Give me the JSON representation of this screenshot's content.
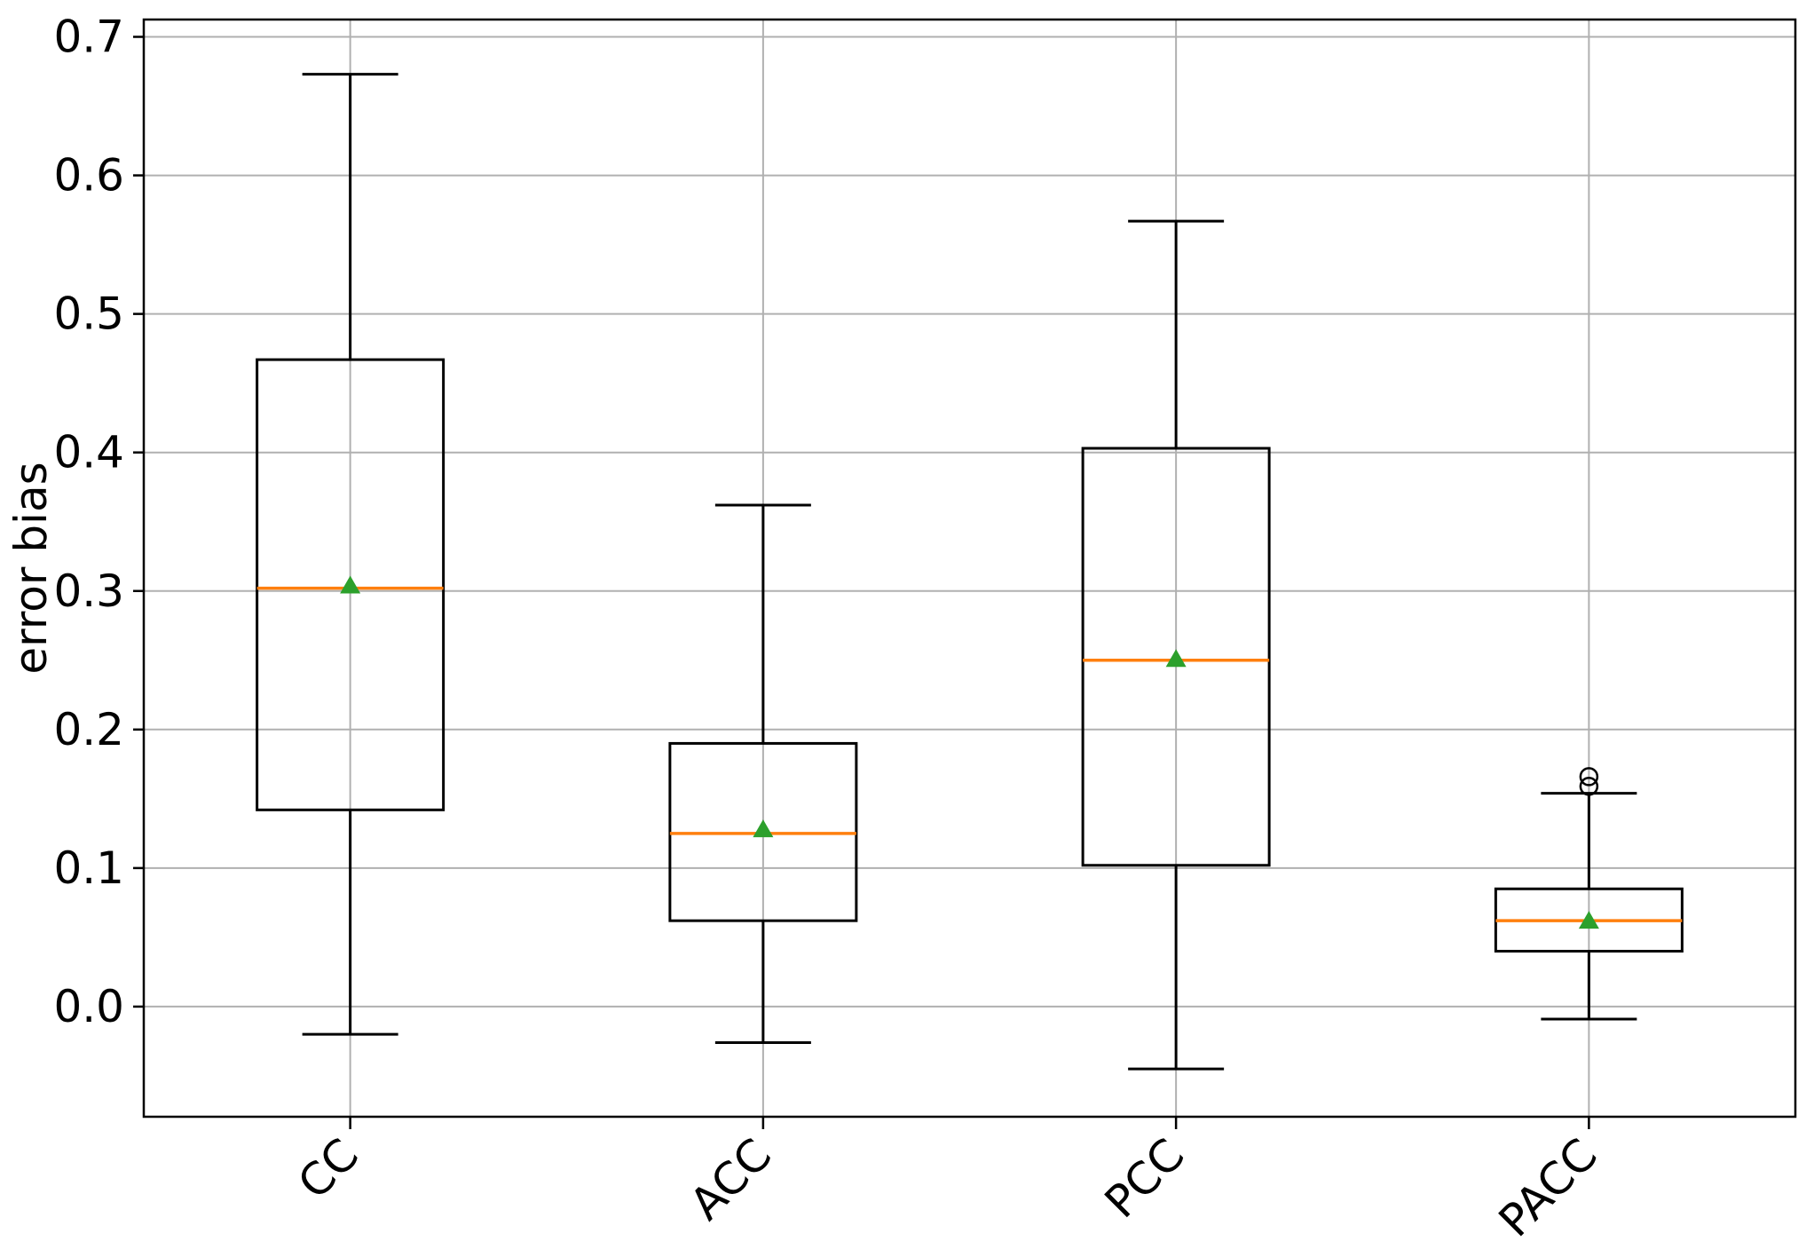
{
  "chart_data": {
    "type": "boxplot",
    "title": "",
    "xlabel": "",
    "ylabel": "error bias",
    "categories": [
      "CC",
      "ACC",
      "PCC",
      "PACC"
    ],
    "ylim": [
      -0.0795,
      0.7125
    ],
    "grid": true,
    "legend": null,
    "yticks": {
      "values": [
        0.0,
        0.1,
        0.2,
        0.3,
        0.4,
        0.5,
        0.6,
        0.7
      ],
      "labels": [
        "0.0",
        "0.1",
        "0.2",
        "0.3",
        "0.4",
        "0.5",
        "0.6",
        "0.7"
      ]
    },
    "xtick_rotation_deg": 45,
    "boxes": [
      {
        "label": "CC",
        "whislo": -0.02,
        "q1": 0.142,
        "med": 0.302,
        "mean": 0.304,
        "q3": 0.467,
        "whishi": 0.673,
        "fliers": []
      },
      {
        "label": "ACC",
        "whislo": -0.026,
        "q1": 0.062,
        "med": 0.125,
        "mean": 0.128,
        "q3": 0.19,
        "whishi": 0.362,
        "fliers": []
      },
      {
        "label": "PCC",
        "whislo": -0.045,
        "q1": 0.102,
        "med": 0.25,
        "mean": 0.251,
        "q3": 0.403,
        "whishi": 0.567,
        "fliers": []
      },
      {
        "label": "PACC",
        "whislo": -0.009,
        "q1": 0.04,
        "med": 0.062,
        "mean": 0.062,
        "q3": 0.085,
        "whishi": 0.154,
        "fliers": [
          0.159,
          0.166
        ]
      }
    ],
    "style": {
      "median_color": "#ff7f0e",
      "mean_marker_color": "#2ca02c",
      "mean_marker": "triangle-up",
      "flier_marker": "circle-open",
      "box_color": "#000000",
      "grid_color": "#b0b0b0",
      "background": "#ffffff"
    }
  }
}
